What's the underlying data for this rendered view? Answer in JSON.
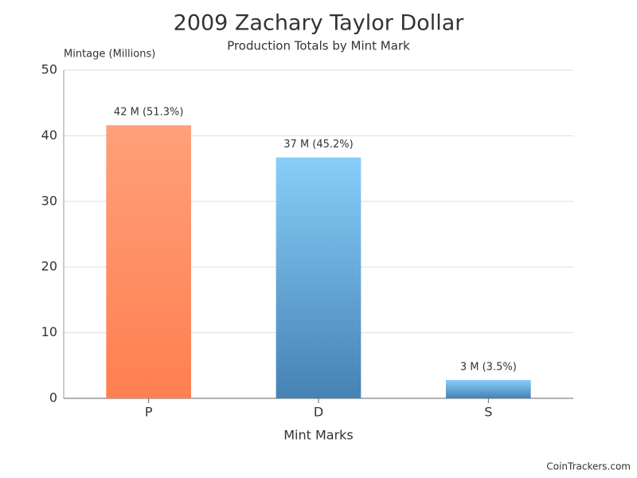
{
  "chart_data": {
    "type": "bar",
    "title": "2009 Zachary Taylor Dollar",
    "subtitle": "Production Totals by Mint Mark",
    "y_label": "Mintage (Millions)",
    "x_label": "Mint Marks",
    "categories": [
      "P",
      "D",
      "S"
    ],
    "values": [
      41.6,
      36.7,
      2.8
    ],
    "value_labels": [
      "42 M (51.3%)",
      "37 M (45.2%)",
      "3 M (3.5%)"
    ],
    "colors": [
      [
        "#ffa07a",
        "#ff7f50"
      ],
      [
        "#87cefa",
        "#4682b4"
      ],
      [
        "#87cefa",
        "#4682b4"
      ]
    ],
    "ylim": [
      0,
      50
    ],
    "yticks": [
      0,
      10,
      20,
      30,
      40,
      50
    ],
    "grid": true,
    "footer": "CoinTrackers.com"
  }
}
